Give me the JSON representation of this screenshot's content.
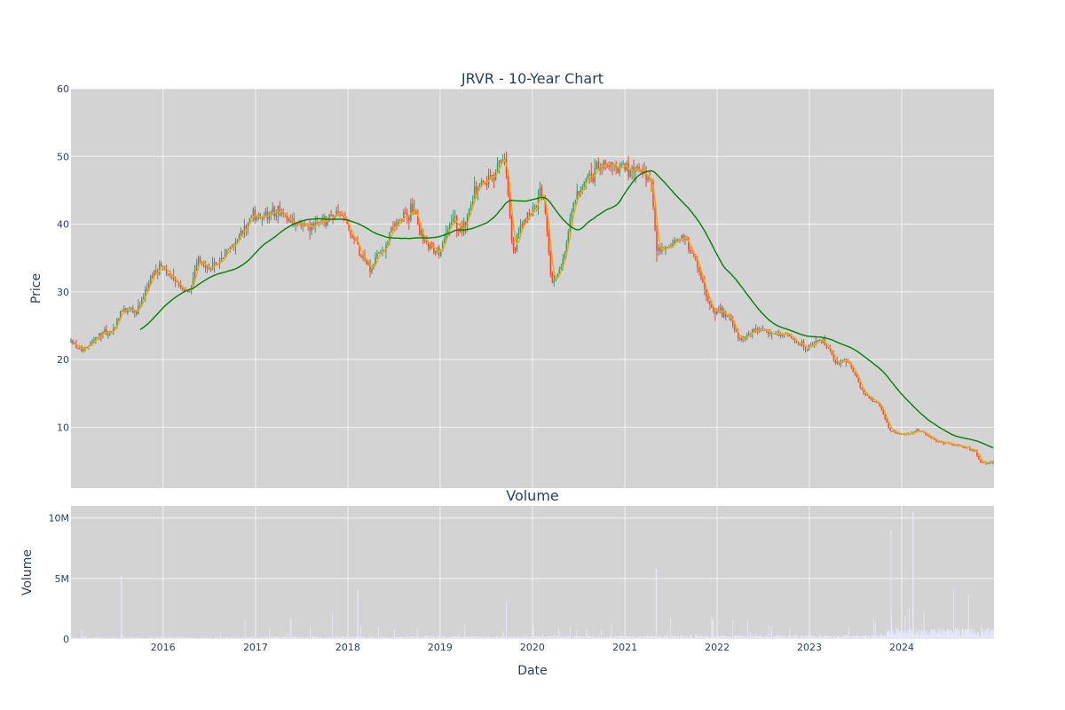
{
  "chart_data": [
    {
      "type": "candlestick",
      "title": "JRVR - 10-Year Chart",
      "ylabel": "Price",
      "ylim": [
        1,
        60
      ],
      "y_ticks": [
        10,
        20,
        30,
        40,
        50,
        60
      ],
      "grid": true,
      "background": "#d3d3d3",
      "up_color": "#3d9970",
      "down_color": "#ff4136",
      "moving_averages": [
        {
          "window": "short",
          "color": "#ffa500"
        },
        {
          "window": "long",
          "color": "#008000"
        }
      ],
      "price_anchors": [
        [
          "2015-01-02",
          22.5
        ],
        [
          "2015-02-15",
          21.2
        ],
        [
          "2015-05-01",
          23.8
        ],
        [
          "2015-06-15",
          24.0
        ],
        [
          "2015-07-20",
          27.5
        ],
        [
          "2015-09-15",
          27.0
        ],
        [
          "2015-11-10",
          32.0
        ],
        [
          "2016-01-01",
          33.5
        ],
        [
          "2016-03-01",
          31.0
        ],
        [
          "2016-04-20",
          30.0
        ],
        [
          "2016-05-15",
          35.0
        ],
        [
          "2016-07-01",
          33.5
        ],
        [
          "2016-09-15",
          36.0
        ],
        [
          "2016-11-01",
          38.5
        ],
        [
          "2016-12-15",
          41.0
        ],
        [
          "2017-02-15",
          41.5
        ],
        [
          "2017-04-01",
          42.0
        ],
        [
          "2017-06-01",
          40.0
        ],
        [
          "2017-08-01",
          39.5
        ],
        [
          "2017-10-01",
          40.5
        ],
        [
          "2017-11-20",
          41.5
        ],
        [
          "2018-01-15",
          39.0
        ],
        [
          "2018-03-01",
          35.0
        ],
        [
          "2018-04-01",
          33.5
        ],
        [
          "2018-05-15",
          36.0
        ],
        [
          "2018-07-01",
          39.5
        ],
        [
          "2018-09-15",
          42.0
        ],
        [
          "2018-11-01",
          37.0
        ],
        [
          "2019-01-01",
          36.0
        ],
        [
          "2019-02-15",
          41.0
        ],
        [
          "2019-04-01",
          39.0
        ],
        [
          "2019-05-20",
          45.0
        ],
        [
          "2019-07-15",
          46.5
        ],
        [
          "2019-09-15",
          50.0
        ],
        [
          "2019-10-15",
          36.0
        ],
        [
          "2019-11-20",
          40.0
        ],
        [
          "2020-01-01",
          42.0
        ],
        [
          "2020-02-15",
          45.0
        ],
        [
          "2020-03-15",
          31.0
        ],
        [
          "2020-04-15",
          33.0
        ],
        [
          "2020-05-10",
          36.0
        ],
        [
          "2020-06-15",
          44.0
        ],
        [
          "2020-08-01",
          46.5
        ],
        [
          "2020-09-15",
          48.0
        ],
        [
          "2020-11-01",
          49.0
        ],
        [
          "2021-01-01",
          48.5
        ],
        [
          "2021-03-01",
          47.5
        ],
        [
          "2021-04-15",
          46.5
        ],
        [
          "2021-05-05",
          36.0
        ],
        [
          "2021-07-15",
          37.0
        ],
        [
          "2021-09-01",
          38.0
        ],
        [
          "2021-10-15",
          34.0
        ],
        [
          "2021-12-01",
          28.0
        ],
        [
          "2022-02-15",
          26.5
        ],
        [
          "2022-04-01",
          23.0
        ],
        [
          "2022-06-01",
          24.5
        ],
        [
          "2022-08-01",
          24.0
        ],
        [
          "2022-10-15",
          23.5
        ],
        [
          "2022-12-15",
          21.5
        ],
        [
          "2023-02-15",
          23.0
        ],
        [
          "2023-04-15",
          19.5
        ],
        [
          "2023-06-01",
          20.0
        ],
        [
          "2023-08-01",
          15.0
        ],
        [
          "2023-10-01",
          13.5
        ],
        [
          "2023-11-15",
          9.5
        ],
        [
          "2024-01-15",
          9.0
        ],
        [
          "2024-03-15",
          9.5
        ],
        [
          "2024-05-15",
          8.0
        ],
        [
          "2024-07-15",
          7.5
        ],
        [
          "2024-09-15",
          7.0
        ],
        [
          "2024-10-20",
          6.5
        ],
        [
          "2024-11-05",
          4.7
        ],
        [
          "2024-12-31",
          4.8
        ]
      ]
    },
    {
      "type": "bar",
      "title": "Volume",
      "xlabel": "Date",
      "ylabel": "Volume",
      "ylim": [
        0,
        11000000
      ],
      "y_ticks": [
        0,
        5000000,
        10000000
      ],
      "y_tick_labels": [
        "0",
        "5M",
        "10M"
      ],
      "x_range": [
        "2015-01-02",
        "2024-12-31"
      ],
      "x_ticks": [
        "2016-01-01",
        "2017-01-01",
        "2018-01-01",
        "2019-01-01",
        "2020-01-01",
        "2021-01-01",
        "2022-01-01",
        "2023-01-01",
        "2024-01-01"
      ],
      "x_tick_labels": [
        "2016",
        "2017",
        "2018",
        "2019",
        "2020",
        "2021",
        "2022",
        "2023",
        "2024"
      ],
      "grid": true,
      "background": "#d3d3d3",
      "bar_color": "#e6e6fa",
      "volume_spikes": [
        [
          "2015-07-20",
          5200000
        ],
        [
          "2016-11-20",
          1700000
        ],
        [
          "2017-05-20",
          1700000
        ],
        [
          "2017-11-01",
          2100000
        ],
        [
          "2018-02-10",
          4100000
        ],
        [
          "2019-09-20",
          3100000
        ],
        [
          "2021-05-05",
          5800000
        ],
        [
          "2021-07-01",
          1800000
        ],
        [
          "2021-12-15",
          1600000
        ],
        [
          "2023-11-20",
          9000000
        ],
        [
          "2024-01-15",
          1900000
        ],
        [
          "2024-02-15",
          10500000
        ],
        [
          "2024-11-10",
          1200000
        ]
      ]
    }
  ]
}
